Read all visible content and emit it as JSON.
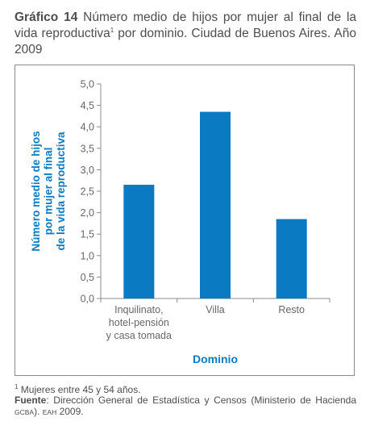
{
  "title": {
    "label": "Gráfico 14",
    "text_before_sup": " Número medio de hijos por mujer al final de la vida reproductiva",
    "sup": "1",
    "text_after_sup": " por dominio. Ciudad de Buenos Aires. Año 2009"
  },
  "chart_data": {
    "type": "bar",
    "categories": [
      [
        "Inquilinato,",
        "hotel-pensión",
        "y casa tomada"
      ],
      [
        "Villa"
      ],
      [
        "Resto"
      ]
    ],
    "values": [
      2.65,
      4.35,
      1.85
    ],
    "ylabel_lines": [
      "Número medio de hijos",
      "por mujer al final",
      "de la vida reproductiva"
    ],
    "xlabel": "Dominio",
    "ylim": [
      0,
      5
    ],
    "yticks": [
      "0,0",
      "0,5",
      "1,0",
      "1,5",
      "2,0",
      "2,5",
      "3,0",
      "3,5",
      "4,0",
      "4,5",
      "5,0"
    ],
    "bar_color": "#0a7bc2",
    "axis_label_color": "#0a7bc2",
    "grid": false
  },
  "footnote": {
    "sup": "1",
    "text": " Mujeres entre 45 y 54 años."
  },
  "source": {
    "label": "Fuente",
    "text1": ": Dirección General de Estadística y Censos (Ministerio de Hacienda ",
    "gcba": "GCBA",
    "text2": "). ",
    "eah": "EAH",
    "text3": " 2009."
  }
}
